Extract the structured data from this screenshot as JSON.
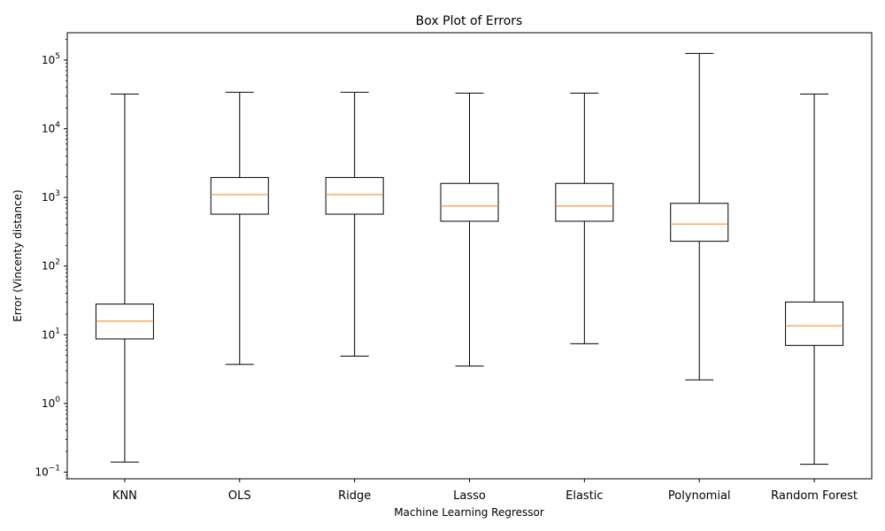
{
  "chart_data": {
    "type": "box",
    "title": "Box Plot of Errors",
    "xlabel": "Machine Learning Regressor",
    "ylabel": "Error (Vincenty distance)",
    "yscale": "log",
    "ylim": [
      0.08,
      250000
    ],
    "yticks": [
      {
        "value": 0.1,
        "base": "10",
        "exp": "−1"
      },
      {
        "value": 1,
        "base": "10",
        "exp": "0"
      },
      {
        "value": 10,
        "base": "10",
        "exp": "1"
      },
      {
        "value": 100,
        "base": "10",
        "exp": "2"
      },
      {
        "value": 1000,
        "base": "10",
        "exp": "3"
      },
      {
        "value": 10000,
        "base": "10",
        "exp": "4"
      },
      {
        "value": 100000,
        "base": "10",
        "exp": "5"
      }
    ],
    "categories": [
      "KNN",
      "OLS",
      "Ridge",
      "Lasso",
      "Elastic",
      "Polynomial",
      "Random Forest"
    ],
    "boxes": [
      {
        "whisker_low": 0.14,
        "q1": 8.7,
        "median": 15.8,
        "q3": 28,
        "whisker_high": 32000
      },
      {
        "whisker_low": 3.7,
        "q1": 570,
        "median": 1100,
        "q3": 1950,
        "whisker_high": 34000
      },
      {
        "whisker_low": 4.9,
        "q1": 570,
        "median": 1100,
        "q3": 1950,
        "whisker_high": 34000
      },
      {
        "whisker_low": 3.5,
        "q1": 450,
        "median": 750,
        "q3": 1600,
        "whisker_high": 33000
      },
      {
        "whisker_low": 7.4,
        "q1": 450,
        "median": 750,
        "q3": 1600,
        "whisker_high": 33000
      },
      {
        "whisker_low": 2.2,
        "q1": 230,
        "median": 410,
        "q3": 820,
        "whisker_high": 125000
      },
      {
        "whisker_low": 0.13,
        "q1": 7.0,
        "median": 13.5,
        "q3": 30,
        "whisker_high": 32000
      }
    ],
    "colors": {
      "box": "#000000",
      "median": "#ff7f0e",
      "axes": "#000000"
    },
    "grid": false,
    "legend": "none"
  }
}
